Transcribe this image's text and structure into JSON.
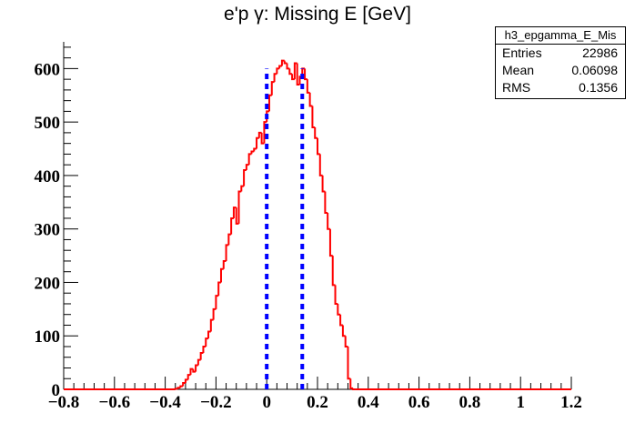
{
  "title": "e'p γ: Missing E [GeV]",
  "stats": {
    "name": "h3_epgamma_E_Mis",
    "rows": [
      {
        "label": "Entries",
        "value": "22986"
      },
      {
        "label": "Mean",
        "value": "0.06098"
      },
      {
        "label": "RMS",
        "value": "0.1356"
      }
    ]
  },
  "colors": {
    "histogram": "#ff0000",
    "cut_lines": "#0000ff",
    "axis": "#000000"
  },
  "chart_data": {
    "type": "histogram",
    "title": "e'p γ: Missing E [GeV]",
    "xlabel": "",
    "ylabel": "",
    "xlim": [
      -0.8,
      1.2
    ],
    "ylim": [
      0,
      650
    ],
    "grid": false,
    "xticks": [
      -0.8,
      -0.6,
      -0.4,
      -0.2,
      0,
      0.2,
      0.4,
      0.6,
      0.8,
      1,
      1.2
    ],
    "xtick_labels": [
      "−0.8",
      "−0.6",
      "−0.4",
      "−0.2",
      "0",
      "0.2",
      "0.4",
      "0.6",
      "0.8",
      "1",
      "1.2"
    ],
    "yticks": [
      0,
      100,
      200,
      300,
      400,
      500,
      600
    ],
    "ytick_labels": [
      "0",
      "100",
      "200",
      "300",
      "400",
      "500",
      "600"
    ],
    "bin_edges": [
      -0.36,
      -0.35,
      -0.34,
      -0.33,
      -0.32,
      -0.31,
      -0.3,
      -0.29,
      -0.28,
      -0.27,
      -0.26,
      -0.25,
      -0.24,
      -0.23,
      -0.22,
      -0.21,
      -0.2,
      -0.19,
      -0.18,
      -0.17,
      -0.16,
      -0.15,
      -0.14,
      -0.13,
      -0.12,
      -0.11,
      -0.1,
      -0.09,
      -0.08,
      -0.07,
      -0.06,
      -0.05,
      -0.04,
      -0.03,
      -0.02,
      -0.01,
      0.0,
      0.01,
      0.02,
      0.03,
      0.04,
      0.05,
      0.06,
      0.07,
      0.08,
      0.09,
      0.1,
      0.11,
      0.12,
      0.13,
      0.14,
      0.15,
      0.16,
      0.17,
      0.18,
      0.19,
      0.2,
      0.21,
      0.22,
      0.23,
      0.24,
      0.25,
      0.26,
      0.27,
      0.28,
      0.29,
      0.3,
      0.31,
      0.32,
      0.33,
      0.34,
      0.35
    ],
    "counts": [
      1,
      3,
      6,
      12,
      18,
      27,
      38,
      33,
      45,
      55,
      68,
      80,
      95,
      108,
      130,
      150,
      175,
      200,
      225,
      240,
      270,
      290,
      320,
      340,
      310,
      370,
      380,
      410,
      420,
      440,
      445,
      450,
      470,
      480,
      460,
      500,
      520,
      550,
      575,
      590,
      600,
      605,
      615,
      610,
      600,
      590,
      580,
      610,
      570,
      585,
      600,
      580,
      555,
      530,
      490,
      470,
      440,
      400,
      370,
      330,
      300,
      250,
      195,
      160,
      140,
      120,
      100,
      80,
      20,
      2,
      0
    ],
    "cut_lines": [
      0.0,
      0.14
    ],
    "cut_line_height": 600
  }
}
